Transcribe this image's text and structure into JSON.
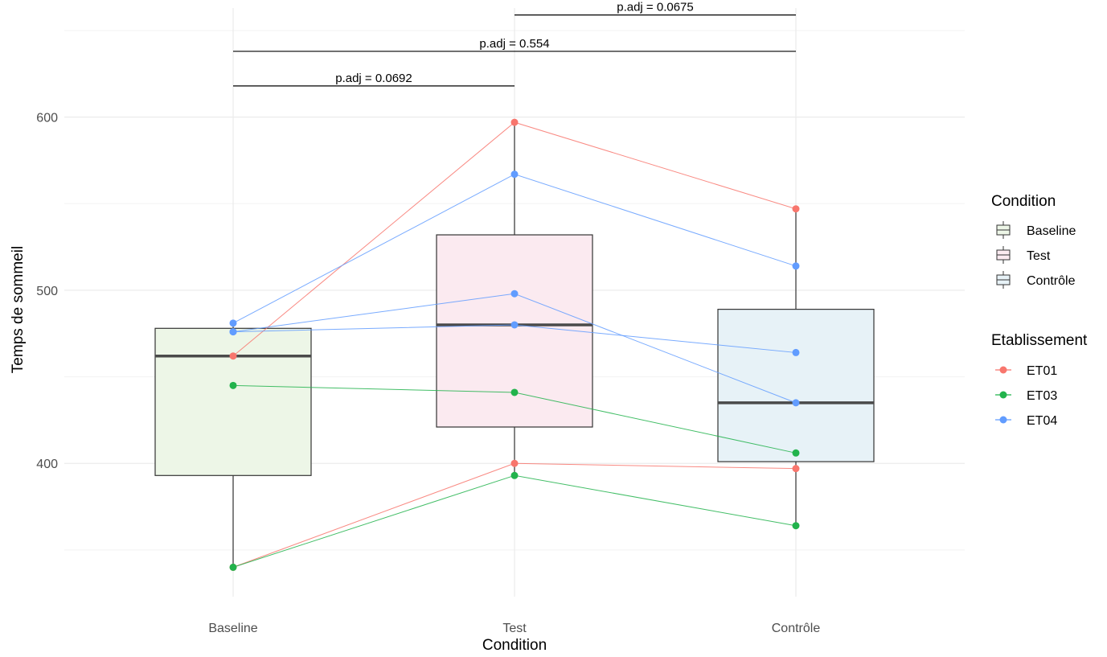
{
  "chart_data": {
    "type": "box",
    "title": "",
    "xlabel": "Condition",
    "ylabel": "Temps de sommeil",
    "categories": [
      "Baseline",
      "Test",
      "Contrôle"
    ],
    "y_ticks": [
      400,
      500,
      600
    ],
    "ylim": [
      323,
      663
    ],
    "grid": true,
    "boxes": [
      {
        "category": "Baseline",
        "min": 340,
        "q1": 393,
        "median": 462,
        "q3": 478,
        "max": 481,
        "fill": "#edf6e7"
      },
      {
        "category": "Test",
        "min": 393,
        "q1": 421,
        "median": 480,
        "q3": 532,
        "max": 597,
        "fill": "#fbeaf0"
      },
      {
        "category": "Contrôle",
        "min": 364,
        "q1": 401,
        "median": 435,
        "q3": 489,
        "max": 547,
        "fill": "#e7f2f7"
      }
    ],
    "series": [
      {
        "name": "ET01",
        "color": "#f8766d",
        "lines": [
          [
            462,
            597,
            547
          ],
          [
            340,
            400,
            397
          ]
        ]
      },
      {
        "name": "ET03",
        "color": "#22b34c",
        "lines": [
          [
            445,
            441,
            406
          ],
          [
            340,
            393,
            364
          ]
        ]
      },
      {
        "name": "ET04",
        "color": "#619cff",
        "lines": [
          [
            481,
            567,
            514
          ],
          [
            476,
            498,
            435
          ],
          [
            476,
            480,
            464
          ]
        ]
      }
    ],
    "annotations": [
      {
        "from": "Baseline",
        "to": "Test",
        "y": 618,
        "label": "p.adj = 0.0692"
      },
      {
        "from": "Baseline",
        "to": "Contrôle",
        "y": 638,
        "label": "p.adj = 0.554"
      },
      {
        "from": "Test",
        "to": "Contrôle",
        "y": 659,
        "label": "p.adj = 0.0675"
      }
    ],
    "legends": {
      "condition": {
        "title": "Condition",
        "items": [
          "Baseline",
          "Test",
          "Contrôle"
        ]
      },
      "etablissement": {
        "title": "Etablissement",
        "items": [
          "ET01",
          "ET03",
          "ET04"
        ]
      }
    },
    "legend_position": "right"
  }
}
